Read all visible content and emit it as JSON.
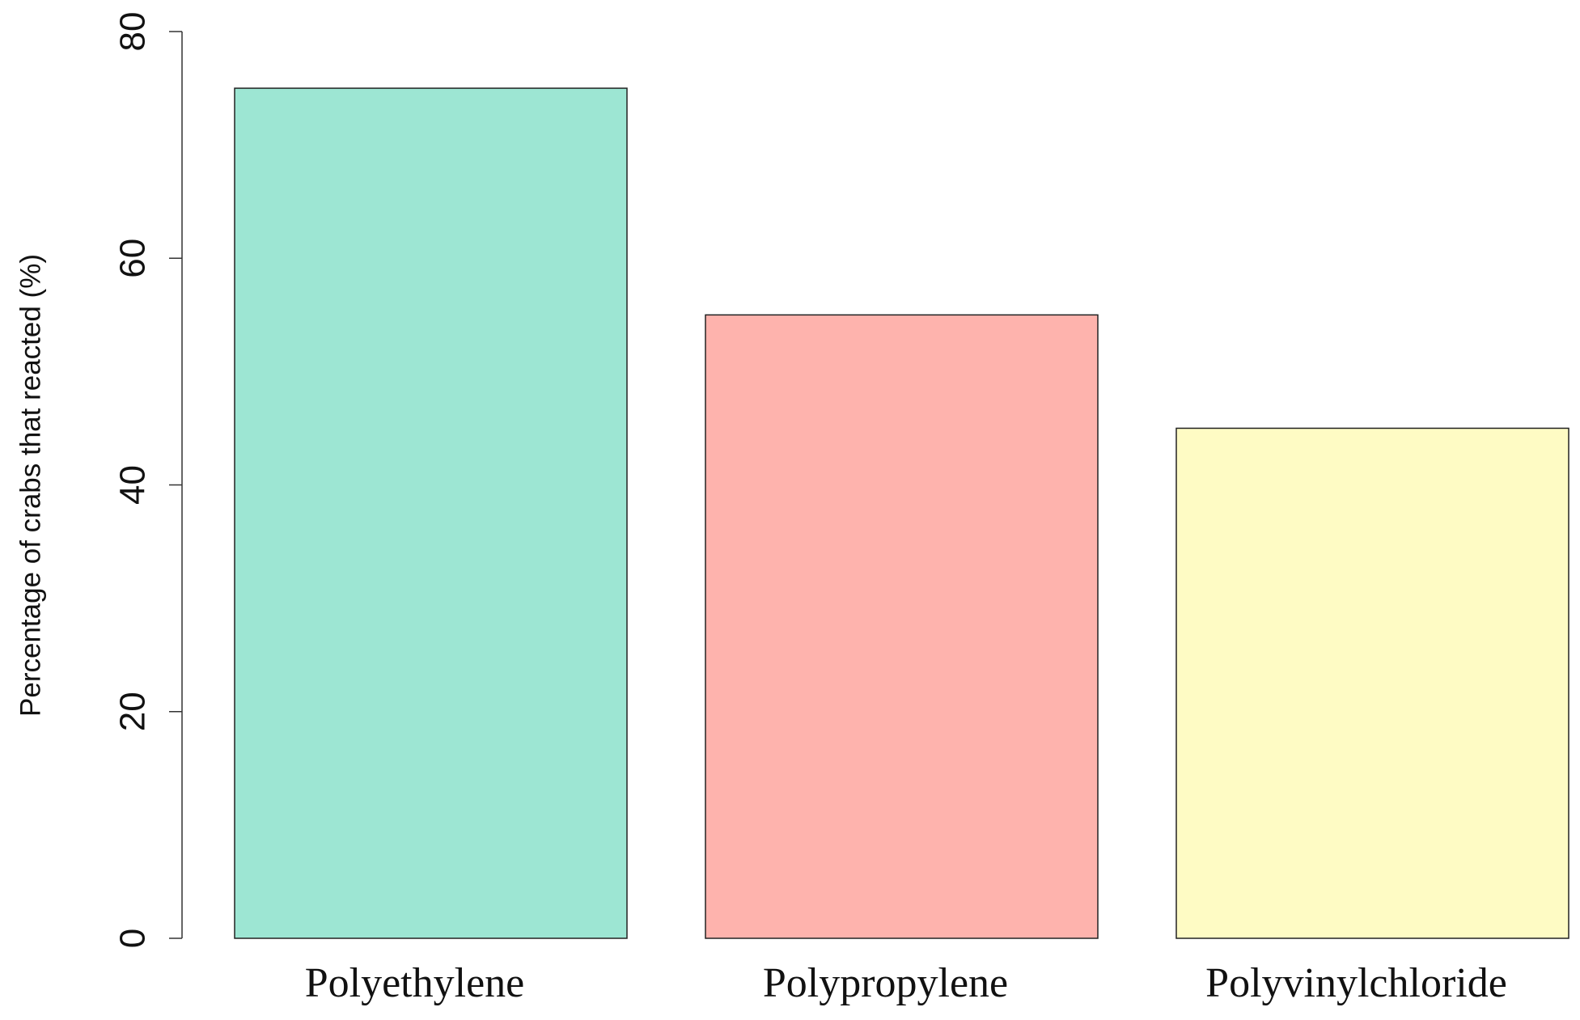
{
  "chart_data": {
    "type": "bar",
    "y_label": "Percentage of crabs that reacted (%)",
    "categories": [
      "Polyethylene",
      "Polypropylene",
      "Polyvinylchloride"
    ],
    "values": [
      75,
      55,
      45
    ],
    "colors": [
      "#9de6d3",
      "#feb3ad",
      "#fefbc4"
    ],
    "ylim": [
      0,
      80
    ],
    "yticks": [
      0,
      20,
      40,
      60,
      80
    ]
  }
}
